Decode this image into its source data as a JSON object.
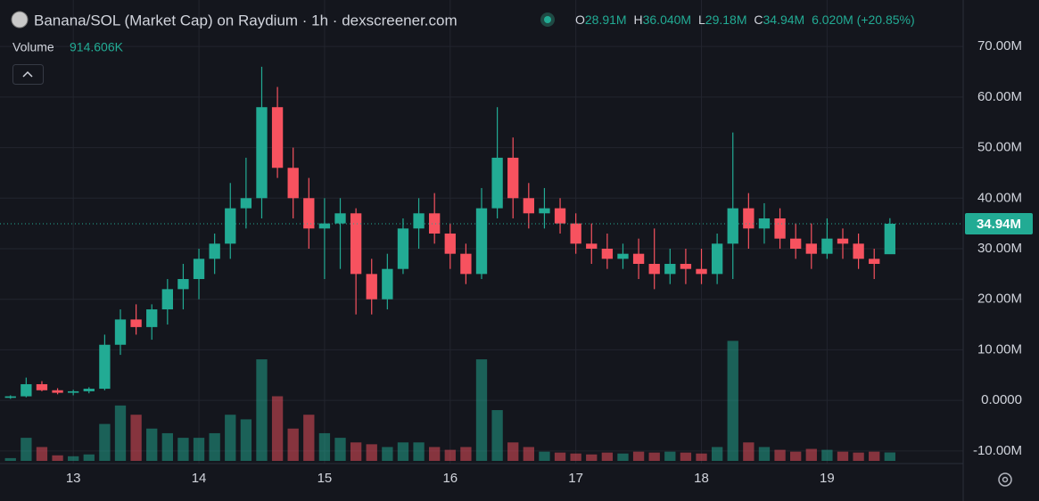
{
  "header": {
    "title": "Banana/SOL (Market Cap) on Raydium · 1h · dexscreener.com",
    "ohlc": [
      {
        "key": "O",
        "value": "28.91M"
      },
      {
        "key": "H",
        "value": "36.040M"
      },
      {
        "key": "L",
        "value": "29.18M"
      },
      {
        "key": "C",
        "value": "34.94M"
      }
    ],
    "change": "6.020M (+20.85%)",
    "volume_label": "Volume",
    "volume_value": "914.606K",
    "last_price_label": "34.94M"
  },
  "chart_data": {
    "type": "candlestick",
    "x": [
      -12,
      -9,
      -6,
      -3,
      0,
      3,
      6,
      9,
      12,
      15,
      18,
      21,
      24,
      27,
      30,
      33,
      36,
      39,
      42,
      45,
      48,
      51,
      54,
      57,
      60,
      63,
      66,
      69,
      72,
      75,
      78,
      81,
      84,
      87,
      90,
      93,
      96,
      99,
      102,
      105,
      108,
      111,
      114,
      117,
      120,
      123,
      126,
      129,
      132,
      135,
      138,
      141,
      144,
      147,
      150,
      153,
      156
    ],
    "open": [
      0.5,
      0.8,
      3.2,
      2.0,
      1.5,
      1.8,
      2.3,
      11,
      16,
      14.5,
      18,
      22,
      24,
      28,
      31,
      38,
      40,
      58,
      46,
      40,
      34,
      35,
      37,
      25,
      20,
      26,
      34,
      37,
      33,
      29,
      25,
      38,
      48,
      40,
      37,
      38,
      35,
      31,
      30,
      28,
      29,
      27,
      25,
      27,
      26,
      25,
      31,
      38,
      34,
      36,
      32,
      31,
      29,
      32,
      31,
      28,
      28.91
    ],
    "high": [
      1,
      4.5,
      3.8,
      2.4,
      2.1,
      2.6,
      13,
      18,
      19,
      19,
      24,
      27,
      30,
      33,
      43,
      48,
      66,
      62,
      50,
      44,
      40,
      40,
      38,
      28,
      29,
      36,
      40,
      41,
      35,
      31,
      42,
      58,
      52,
      43,
      42,
      40,
      37,
      35,
      33,
      31,
      32,
      34,
      30,
      30,
      30,
      33,
      53,
      41,
      39,
      38,
      35,
      35,
      36,
      34,
      33,
      30,
      36.04
    ],
    "low": [
      0.3,
      0.6,
      1.8,
      1.2,
      1.0,
      1.4,
      2,
      9,
      13,
      12,
      15,
      18,
      20,
      25,
      28,
      34,
      36,
      44,
      36,
      30,
      24,
      26,
      17,
      17,
      18,
      25,
      30,
      31,
      26,
      23,
      24,
      36,
      36,
      34,
      34,
      33,
      29,
      27,
      26,
      26,
      24,
      22,
      23,
      23,
      23,
      23,
      24,
      30,
      31,
      30,
      28,
      26,
      28,
      28,
      26,
      24,
      29.18
    ],
    "close": [
      0.8,
      3.2,
      2.0,
      1.5,
      1.8,
      2.3,
      11,
      16,
      14.5,
      18,
      22,
      24,
      28,
      31,
      38,
      40,
      58,
      46,
      40,
      34,
      35,
      37,
      25,
      20,
      26,
      34,
      37,
      33,
      29,
      25,
      38,
      48,
      40,
      37,
      38,
      35,
      31,
      30,
      28,
      29,
      27,
      25,
      27,
      26,
      25,
      31,
      38,
      34,
      36,
      32,
      30,
      29,
      32,
      31,
      28,
      27,
      34.94
    ],
    "volume": [
      300,
      2500,
      1500,
      600,
      500,
      700,
      4000,
      6000,
      5000,
      3500,
      3000,
      2500,
      2500,
      3000,
      5000,
      4500,
      11000,
      7000,
      3500,
      5000,
      3000,
      2500,
      2000,
      1800,
      1500,
      2000,
      2000,
      1500,
      1200,
      1500,
      11000,
      5500,
      2000,
      1500,
      1000,
      900,
      800,
      700,
      900,
      800,
      1000,
      900,
      1000,
      900,
      800,
      1500,
      13000,
      2000,
      1500,
      1200,
      1000,
      1300,
      1200,
      1000,
      900,
      1000,
      914.606
    ],
    "up_color": "#22ab94",
    "down_color": "#f7525f",
    "xlim": [
      -14,
      170
    ],
    "xticks": [
      {
        "value": 0,
        "label": "13"
      },
      {
        "value": 24,
        "label": "14"
      },
      {
        "value": 48,
        "label": "15"
      },
      {
        "value": 72,
        "label": "16"
      },
      {
        "value": 96,
        "label": "17"
      },
      {
        "value": 120,
        "label": "18"
      },
      {
        "value": 144,
        "label": "19"
      }
    ],
    "ylim": [
      -12.5,
      79.2
    ],
    "yticks": [
      {
        "value": -10,
        "label": "-10.00M"
      },
      {
        "value": 0,
        "label": "0.0000"
      },
      {
        "value": 10,
        "label": "10.00M"
      },
      {
        "value": 20,
        "label": "20.00M"
      },
      {
        "value": 30,
        "label": "30.00M"
      },
      {
        "value": 40,
        "label": "40.00M"
      },
      {
        "value": 50,
        "label": "50.00M"
      },
      {
        "value": 60,
        "label": "60.00M"
      },
      {
        "value": 70,
        "label": "70.00M"
      }
    ],
    "volume_lim": [
      0,
      14000
    ],
    "grid": true
  }
}
